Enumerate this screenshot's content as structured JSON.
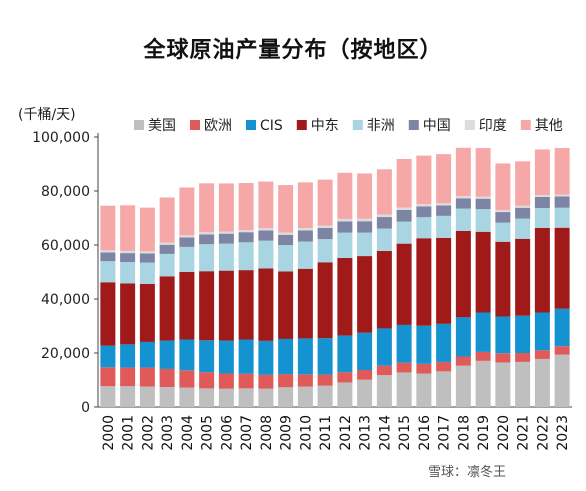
{
  "title": "全球原油产量分布（按地区）",
  "unit_label": "(千桶/天)",
  "watermark": "雪球：凛冬王",
  "chart_data": {
    "type": "bar",
    "stacked": true,
    "title": "全球原油产量分布（按地区）",
    "ylabel": "(千桶/天)",
    "ylim": [
      0,
      100000
    ],
    "yticks": [
      0,
      20000,
      40000,
      60000,
      80000,
      100000
    ],
    "ytick_labels": [
      "0",
      "20,000",
      "40,000",
      "60,000",
      "80,000",
      "100,000"
    ],
    "grid": false,
    "legend_position": "top",
    "categories": [
      "2000",
      "2001",
      "2002",
      "2003",
      "2004",
      "2005",
      "2006",
      "2007",
      "2008",
      "2009",
      "2010",
      "2011",
      "2012",
      "2013",
      "2014",
      "2015",
      "2016",
      "2017",
      "2018",
      "2019",
      "2020",
      "2021",
      "2022",
      "2023"
    ],
    "series": [
      {
        "name": "美国",
        "color": "#bfbfbf",
        "values": [
          7700,
          7700,
          7600,
          7400,
          7200,
          6900,
          6800,
          6900,
          6800,
          7300,
          7600,
          7900,
          9100,
          10100,
          11800,
          12800,
          12400,
          13200,
          15300,
          17100,
          16500,
          16700,
          17800,
          19400
        ]
      },
      {
        "name": "欧洲",
        "color": "#e05a5a",
        "values": [
          7000,
          6900,
          7000,
          6700,
          6400,
          6000,
          5600,
          5400,
          5100,
          4900,
          4500,
          4100,
          3800,
          3600,
          3500,
          3600,
          3600,
          3500,
          3400,
          3300,
          3400,
          3300,
          3200,
          3100
        ]
      },
      {
        "name": "CIS",
        "color": "#1593d0",
        "values": [
          8000,
          8600,
          9500,
          10500,
          11400,
          11800,
          12200,
          12700,
          12600,
          13000,
          13300,
          13500,
          13600,
          13800,
          13800,
          14000,
          14100,
          14100,
          14500,
          14600,
          13600,
          13800,
          14000,
          13900
        ]
      },
      {
        "name": "中东",
        "color": "#a11a1a",
        "values": [
          23500,
          22600,
          21500,
          23800,
          25000,
          25600,
          25900,
          25700,
          26800,
          25000,
          25800,
          28100,
          28700,
          28400,
          28700,
          30100,
          32400,
          31800,
          32000,
          29900,
          27700,
          28500,
          31300,
          30000
        ]
      },
      {
        "name": "非洲",
        "color": "#a9d4e2",
        "values": [
          7800,
          7900,
          7900,
          8300,
          9300,
          10000,
          10000,
          10300,
          10300,
          9800,
          10100,
          8600,
          9400,
          8700,
          8300,
          8200,
          7800,
          8200,
          8300,
          8400,
          7100,
          7500,
          7400,
          7400
        ]
      },
      {
        "name": "中国",
        "color": "#7d84a4",
        "values": [
          3250,
          3300,
          3350,
          3400,
          3500,
          3650,
          3700,
          3750,
          3800,
          3800,
          4100,
          4100,
          4150,
          4200,
          4250,
          4300,
          4000,
          3850,
          3800,
          3850,
          3900,
          4000,
          4100,
          4200
        ]
      },
      {
        "name": "印度",
        "color": "#dcdcdc",
        "values": [
          800,
          800,
          800,
          800,
          800,
          800,
          800,
          800,
          800,
          800,
          900,
          900,
          900,
          900,
          900,
          850,
          800,
          800,
          800,
          750,
          700,
          700,
          700,
          700
        ]
      },
      {
        "name": "其他",
        "color": "#f6a8a8",
        "values": [
          16500,
          16900,
          16200,
          16700,
          17700,
          18100,
          17800,
          17400,
          17300,
          17600,
          16900,
          17000,
          17100,
          16800,
          16800,
          18000,
          18000,
          18200,
          17900,
          18000,
          17300,
          16500,
          16900,
          17200
        ]
      }
    ]
  }
}
